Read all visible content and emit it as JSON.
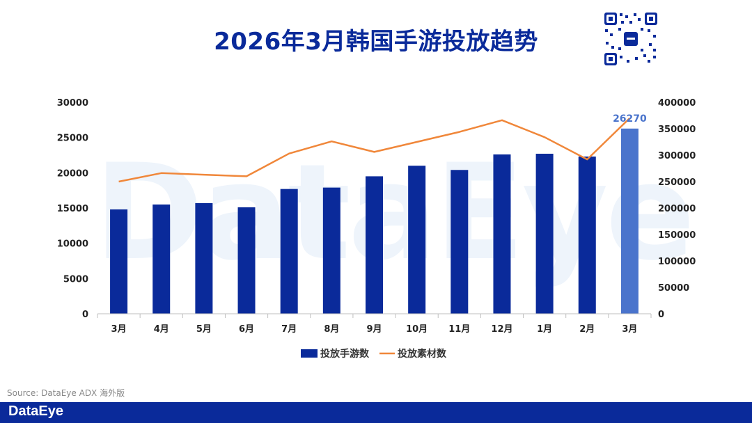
{
  "page": {
    "title": "2026年3月韩国手游投放趋势",
    "source": "Source: DataEye ADX 海外版",
    "footer_brand": "DataEye",
    "watermark": "DataEye"
  },
  "colors": {
    "bar": "#0a2a9a",
    "bar_highlight": "#4a74cc",
    "line": "#f0873a",
    "footer": "#0a2a9a"
  },
  "chart_data": {
    "type": "bar",
    "categories": [
      "3月",
      "4月",
      "5月",
      "6月",
      "7月",
      "8月",
      "9月",
      "10月",
      "11月",
      "12月",
      "1月",
      "2月",
      "3月"
    ],
    "series": [
      {
        "name": "投放手游数",
        "kind": "bar",
        "axis": "left",
        "values": [
          14800,
          15500,
          15700,
          15100,
          17700,
          17900,
          19500,
          21000,
          20400,
          22600,
          22700,
          22300,
          26270
        ]
      },
      {
        "name": "投放素材数",
        "kind": "line",
        "axis": "right",
        "values": [
          250000,
          266000,
          263000,
          260000,
          303000,
          326000,
          306000,
          325000,
          344000,
          366000,
          334000,
          292000,
          370000
        ]
      }
    ],
    "y_left": {
      "min": 0,
      "max": 30000,
      "ticks": [
        0,
        5000,
        10000,
        15000,
        20000,
        25000,
        30000
      ]
    },
    "y_right": {
      "min": 0,
      "max": 400000,
      "ticks": [
        0,
        50000,
        100000,
        150000,
        200000,
        250000,
        300000,
        350000,
        400000
      ]
    },
    "highlight_index": 12,
    "data_label": {
      "index": 12,
      "text": "26270"
    },
    "legend": [
      "投放手游数",
      "投放素材数"
    ],
    "legend_position": "bottom"
  }
}
